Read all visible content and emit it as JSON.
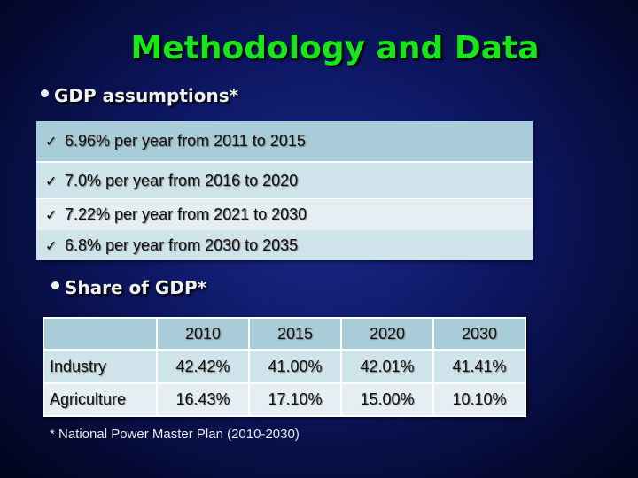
{
  "title": "Methodology and Data",
  "gdp": {
    "heading": "GDP assumptions*",
    "items": [
      "6.96% per year from 2011 to 2015",
      "7.0% per year from 2016 to 2020",
      "7.22% per year from 2021 to 2030",
      "6.8% per year from 2030 to 2035"
    ],
    "check_icon": "✓"
  },
  "share": {
    "heading": "Share of GDP*",
    "columns": [
      "2010",
      "2015",
      "2020",
      "2030"
    ],
    "rows": [
      {
        "label": "Industry",
        "values": [
          "42.42%",
          "41.00%",
          "42.01%",
          "41.41%"
        ]
      },
      {
        "label": "Agriculture",
        "values": [
          "16.43%",
          "17.10%",
          "15.00%",
          "10.10%"
        ]
      }
    ]
  },
  "footnote": "* National Power Master Plan (2010-2030)",
  "colors": {
    "title": "#19e619",
    "table_header": "#a8ccd8",
    "table_band": "#cfe3ea",
    "table_light": "#e5eff3"
  }
}
